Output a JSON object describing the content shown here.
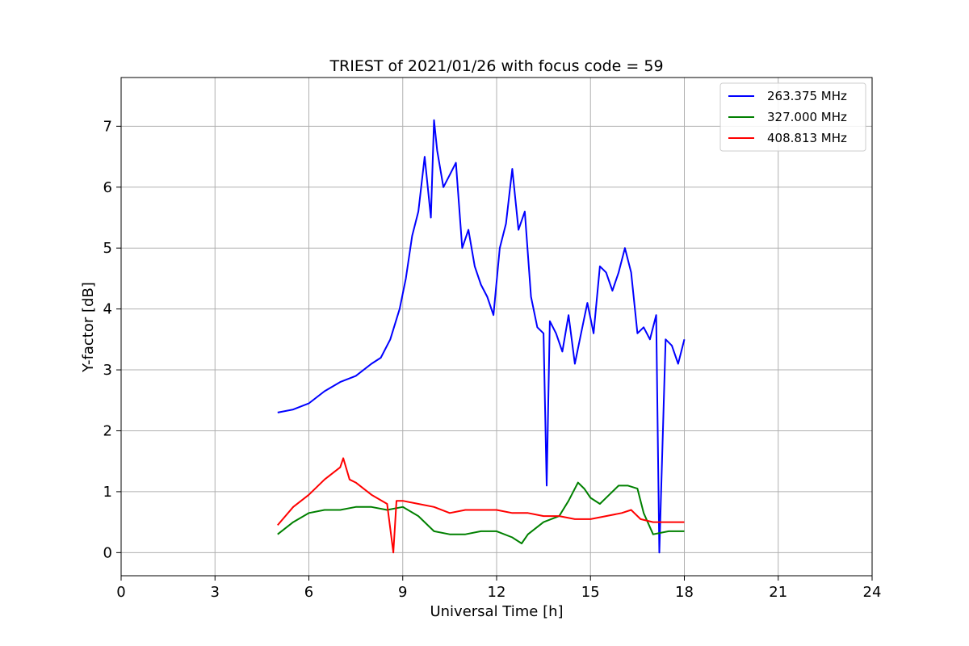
{
  "chart_data": {
    "type": "line",
    "title": "TRIEST of 2021/01/26 with focus code = 59",
    "xlabel": "Universal Time [h]",
    "ylabel": "Y-factor [dB]",
    "xlim": [
      0,
      24
    ],
    "ylim": [
      -0.38,
      7.8
    ],
    "xticks": [
      0,
      3,
      6,
      9,
      12,
      15,
      18,
      21,
      24
    ],
    "yticks": [
      0,
      1,
      2,
      3,
      4,
      5,
      6,
      7
    ],
    "grid": true,
    "legend_position": "top-right",
    "series": [
      {
        "name": "263.375 MHz",
        "color": "#0000ff",
        "x": [
          5.0,
          5.5,
          6.0,
          6.5,
          7.0,
          7.5,
          8.0,
          8.3,
          8.6,
          8.9,
          9.1,
          9.3,
          9.5,
          9.7,
          9.9,
          10.0,
          10.1,
          10.3,
          10.5,
          10.7,
          10.9,
          11.1,
          11.3,
          11.5,
          11.7,
          11.9,
          12.1,
          12.3,
          12.5,
          12.7,
          12.9,
          13.1,
          13.3,
          13.5,
          13.6,
          13.7,
          13.9,
          14.1,
          14.3,
          14.5,
          14.7,
          14.9,
          15.1,
          15.3,
          15.5,
          15.7,
          15.9,
          16.1,
          16.3,
          16.5,
          16.7,
          16.9,
          17.1,
          17.2,
          17.4,
          17.6,
          17.8,
          18.0
        ],
        "y": [
          2.3,
          2.35,
          2.45,
          2.65,
          2.8,
          2.9,
          3.1,
          3.2,
          3.5,
          4.0,
          4.5,
          5.2,
          5.6,
          6.5,
          5.5,
          7.1,
          6.6,
          6.0,
          6.2,
          6.4,
          5.0,
          5.3,
          4.7,
          4.4,
          4.2,
          3.9,
          5.0,
          5.4,
          6.3,
          5.3,
          5.6,
          4.2,
          3.7,
          3.6,
          1.1,
          3.8,
          3.6,
          3.3,
          3.9,
          3.1,
          3.6,
          4.1,
          3.6,
          4.7,
          4.6,
          4.3,
          4.6,
          5.0,
          4.6,
          3.6,
          3.7,
          3.5,
          3.9,
          0.0,
          3.5,
          3.4,
          3.1,
          3.5
        ]
      },
      {
        "name": "327.000 MHz",
        "color": "#008000",
        "x": [
          5.0,
          5.5,
          6.0,
          6.5,
          7.0,
          7.5,
          8.0,
          8.5,
          9.0,
          9.5,
          10.0,
          10.5,
          11.0,
          11.5,
          12.0,
          12.5,
          12.8,
          13.0,
          13.5,
          14.0,
          14.3,
          14.6,
          14.8,
          15.0,
          15.3,
          15.6,
          15.9,
          16.2,
          16.5,
          16.7,
          17.0,
          17.5,
          18.0
        ],
        "y": [
          0.3,
          0.5,
          0.65,
          0.7,
          0.7,
          0.75,
          0.75,
          0.7,
          0.75,
          0.6,
          0.35,
          0.3,
          0.3,
          0.35,
          0.35,
          0.25,
          0.15,
          0.3,
          0.5,
          0.6,
          0.85,
          1.15,
          1.05,
          0.9,
          0.8,
          0.95,
          1.1,
          1.1,
          1.05,
          0.65,
          0.3,
          0.35,
          0.35
        ]
      },
      {
        "name": "408.813 MHz",
        "color": "#ff0000",
        "x": [
          5.0,
          5.5,
          6.0,
          6.5,
          7.0,
          7.1,
          7.3,
          7.5,
          8.0,
          8.5,
          8.7,
          8.8,
          9.0,
          9.5,
          10.0,
          10.5,
          11.0,
          11.5,
          12.0,
          12.5,
          13.0,
          13.5,
          14.0,
          14.5,
          15.0,
          15.5,
          16.0,
          16.3,
          16.6,
          17.0,
          17.5,
          18.0
        ],
        "y": [
          0.45,
          0.75,
          0.95,
          1.2,
          1.4,
          1.55,
          1.2,
          1.15,
          0.95,
          0.8,
          0.0,
          0.85,
          0.85,
          0.8,
          0.75,
          0.65,
          0.7,
          0.7,
          0.7,
          0.65,
          0.65,
          0.6,
          0.6,
          0.55,
          0.55,
          0.6,
          0.65,
          0.7,
          0.55,
          0.5,
          0.5,
          0.5
        ]
      }
    ]
  }
}
